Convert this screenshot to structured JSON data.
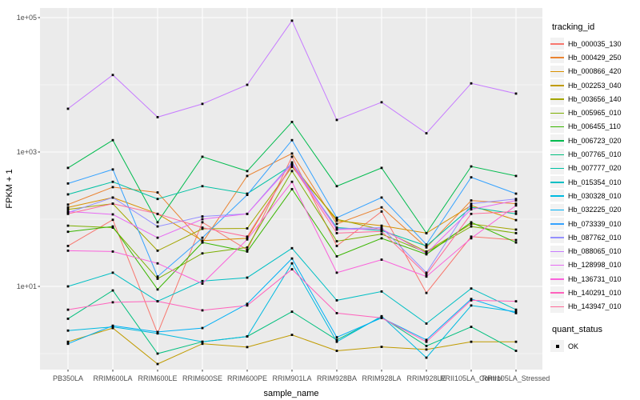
{
  "figure": {
    "y_axis_title": "FPKM + 1",
    "x_axis_title": "sample_name",
    "legend_tracking_title": "tracking_id",
    "legend_quant_title": "quant_status",
    "quant_items": [
      {
        "label": "OK",
        "marker": "black-square-icon"
      }
    ],
    "colors": {
      "panel_bg": "#EBEBEB",
      "grid_major": "#FFFFFF",
      "grid_minor": "#F7F7F7",
      "tick_text": "#4D4D4D",
      "tick_mark": "#333333",
      "point": "#000000",
      "legend_key_bg": "#F2F2F2"
    }
  },
  "chart_data": {
    "type": "line",
    "title": "",
    "xlabel": "sample_name",
    "ylabel": "FPKM + 1",
    "y_scale": "log10",
    "ylim_log10": [
      -0.24,
      5.15
    ],
    "grid": true,
    "legend_position": "right",
    "point_marker": "black-square",
    "y_major_ticks": [
      {
        "label": "1e+05",
        "log10": 5
      },
      {
        "label": "1e+03",
        "log10": 3
      },
      {
        "label": "1e+01",
        "log10": 1
      }
    ],
    "y_minor_log10": [
      0,
      2,
      4
    ],
    "categories": [
      "PB350LA",
      "RRIM600LA",
      "RRIM600LE",
      "RRIM600SE",
      "RRIM600PE",
      "RRIM901LA",
      "RRIM928BA",
      "RRIM928LA",
      "RRIM928LE",
      "RRII105LA_Control",
      "RRII105LA_Stressed"
    ],
    "series": [
      {
        "name": "Hb_000035_130",
        "color": "#F8766D",
        "values": [
          40,
          98,
          2.0,
          90,
          35,
          850,
          40,
          130,
          8,
          55,
          49
        ]
      },
      {
        "name": "Hb_000429_250",
        "color": "#EA8331",
        "values": [
          165,
          300,
          250,
          45,
          440,
          950,
          85,
          150,
          38,
          190,
          170
        ]
      },
      {
        "name": "Hb_000866_420",
        "color": "#D89000",
        "values": [
          150,
          210,
          120,
          48,
          52,
          660,
          95,
          80,
          62,
          160,
          97
        ]
      },
      {
        "name": "Hb_002253_040",
        "color": "#C09B00",
        "values": [
          1.5,
          2.4,
          0.7,
          1.4,
          1.25,
          1.9,
          1.1,
          1.26,
          1.15,
          1.5,
          1.5
        ]
      },
      {
        "name": "Hb_003656_140",
        "color": "#A3A500",
        "values": [
          140,
          170,
          34,
          72,
          73,
          600,
          100,
          70,
          33,
          85,
          70
        ]
      },
      {
        "name": "Hb_005965_010",
        "color": "#7CAE00",
        "values": [
          80,
          75,
          13,
          31,
          38,
          520,
          47,
          60,
          32,
          78,
          62
        ]
      },
      {
        "name": "Hb_006455_110",
        "color": "#39B600",
        "values": [
          65,
          78,
          9,
          45,
          33,
          280,
          28,
          52,
          30,
          90,
          45
        ]
      },
      {
        "name": "Hb_006723_020",
        "color": "#00BB4E",
        "values": [
          580,
          1500,
          90,
          850,
          520,
          2800,
          310,
          580,
          62,
          610,
          440
        ]
      },
      {
        "name": "Hb_007765_010",
        "color": "#00BF7D",
        "values": [
          3.3,
          8.7,
          1.0,
          1.5,
          1.8,
          4.2,
          1.6,
          3.5,
          1.3,
          2.5,
          1.1
        ]
      },
      {
        "name": "Hb_007777_020",
        "color": "#00C1A3",
        "values": [
          234,
          360,
          200,
          310,
          240,
          640,
          75,
          68,
          40,
          150,
          120
        ]
      },
      {
        "name": "Hb_015354_010",
        "color": "#00BFC4",
        "values": [
          10,
          16,
          6,
          12,
          13.5,
          37,
          6.2,
          8.4,
          2.8,
          9.3,
          4.5
        ]
      },
      {
        "name": "Hb_030328_010",
        "color": "#00BAE0",
        "values": [
          2.2,
          2.5,
          2.0,
          1.5,
          1.8,
          22,
          1.5,
          3.6,
          0.87,
          5.2,
          4.2
        ]
      },
      {
        "name": "Hb_032225_020",
        "color": "#00B0F6",
        "values": [
          1.4,
          2.6,
          2.1,
          2.4,
          5.5,
          26,
          1.75,
          3.4,
          1.6,
          6.5,
          4.0
        ]
      },
      {
        "name": "Hb_073339_010",
        "color": "#35A2FF",
        "values": [
          340,
          550,
          14,
          53,
          230,
          1500,
          105,
          210,
          42,
          420,
          240
        ]
      },
      {
        "name": "Hb_087762_010",
        "color": "#9590FF",
        "values": [
          125,
          210,
          78,
          110,
          120,
          700,
          72,
          75,
          16,
          170,
          200
        ]
      },
      {
        "name": "Hb_088065_010",
        "color": "#C77CFF",
        "values": [
          4400,
          14000,
          3300,
          5200,
          10000,
          90000,
          3000,
          5500,
          1900,
          10500,
          7400
        ]
      },
      {
        "name": "Hb_128998_010",
        "color": "#E76BF3",
        "values": [
          130,
          118,
          53,
          100,
          120,
          660,
          70,
          72,
          31,
          140,
          190
        ]
      },
      {
        "name": "Hb_136731_010",
        "color": "#FA62DB",
        "values": [
          34,
          33,
          22,
          11,
          50,
          360,
          16,
          25,
          14,
          52,
          160
        ]
      },
      {
        "name": "Hb_140291_010",
        "color": "#FF62BC",
        "values": [
          4.5,
          5.8,
          6.0,
          4.4,
          5.2,
          18,
          4.0,
          3.4,
          1.5,
          6.2,
          6.0
        ]
      },
      {
        "name": "Hb_143947_010",
        "color": "#FF6A98",
        "values": [
          120,
          170,
          120,
          75,
          55,
          640,
          62,
          66,
          15,
          120,
          130
        ]
      }
    ]
  }
}
